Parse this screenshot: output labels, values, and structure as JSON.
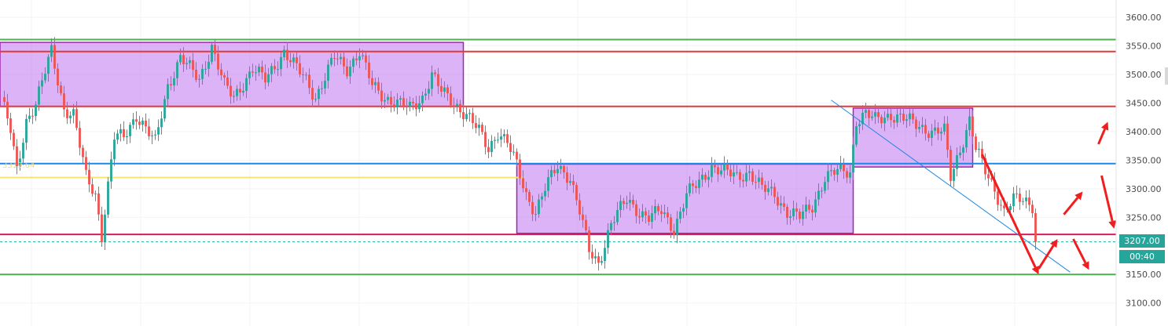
{
  "chart_data": {
    "type": "candlestick",
    "y_axis": {
      "ticks": [
        "3600.00",
        "3550.00",
        "3500.00",
        "3450.00",
        "3400.00",
        "3350.00",
        "3300.00",
        "3250.00",
        "3207.00",
        "3150.00",
        "3100.00"
      ],
      "range": [
        3080,
        3620
      ]
    },
    "current_price_label": "3207.00",
    "countdown_label": "00:40",
    "left_price_label": "3319.64",
    "horizontal_levels": [
      {
        "price": 3561,
        "color": "#4caf50"
      },
      {
        "price": 3540,
        "color": "#e53935"
      },
      {
        "price": 3444,
        "color": "#e53935"
      },
      {
        "price": 3344,
        "color": "#1e88e5"
      },
      {
        "price": 3319.64,
        "color": "#f7e46a"
      },
      {
        "price": 3220,
        "color": "#d81b60"
      },
      {
        "price": 3207,
        "color": "#26a69a",
        "style": "dashed"
      },
      {
        "price": 3150,
        "color": "#4caf50"
      }
    ],
    "ranges": [
      {
        "bar_from": 0,
        "bar_to": 147,
        "low": 3444,
        "high": 3556
      },
      {
        "bar_from": 164,
        "bar_to": 271,
        "low": 3222,
        "high": 3343
      },
      {
        "bar_from": 271,
        "bar_to": 309,
        "low": 3338,
        "high": 3441
      }
    ],
    "trendline": {
      "from": [
        264,
        3455
      ],
      "to": [
        340,
        3154
      ]
    },
    "projection_arrows": [
      {
        "from": [
          312,
          3360
        ],
        "to": [
          330,
          3150
        ]
      },
      {
        "from": [
          330,
          3160
        ],
        "to": [
          336,
          3212
        ]
      },
      {
        "from": [
          338,
          3255
        ],
        "to": [
          344,
          3295
        ]
      },
      {
        "from": [
          341,
          3212
        ],
        "to": [
          346,
          3158
        ]
      },
      {
        "from": [
          349,
          3378
        ],
        "to": [
          352,
          3417
        ]
      },
      {
        "from": [
          350,
          3323
        ],
        "to": [
          354,
          3230
        ]
      }
    ],
    "series": [
      {
        "name": "",
        "anchors": [
          [
            0,
            3460
          ],
          [
            3,
            3400
          ],
          [
            5,
            3330
          ],
          [
            8,
            3420
          ],
          [
            11,
            3450
          ],
          [
            16,
            3540
          ],
          [
            20,
            3440
          ],
          [
            23,
            3430
          ],
          [
            27,
            3320
          ],
          [
            30,
            3290
          ],
          [
            32,
            3220
          ],
          [
            36,
            3390
          ],
          [
            39,
            3390
          ],
          [
            43,
            3430
          ],
          [
            49,
            3380
          ],
          [
            53,
            3480
          ],
          [
            57,
            3530
          ],
          [
            63,
            3490
          ],
          [
            67,
            3550
          ],
          [
            71,
            3480
          ],
          [
            74,
            3460
          ],
          [
            80,
            3510
          ],
          [
            84,
            3490
          ],
          [
            90,
            3540
          ],
          [
            94,
            3510
          ],
          [
            97,
            3490
          ],
          [
            100,
            3460
          ],
          [
            106,
            3530
          ],
          [
            110,
            3510
          ],
          [
            114,
            3540
          ],
          [
            118,
            3480
          ],
          [
            122,
            3460
          ],
          [
            126,
            3450
          ],
          [
            130,
            3440
          ],
          [
            134,
            3460
          ],
          [
            137,
            3500
          ],
          [
            140,
            3470
          ],
          [
            144,
            3450
          ],
          [
            148,
            3430
          ],
          [
            152,
            3400
          ],
          [
            155,
            3370
          ],
          [
            158,
            3400
          ],
          [
            161,
            3380
          ],
          [
            164,
            3340
          ],
          [
            167,
            3290
          ],
          [
            170,
            3260
          ],
          [
            173,
            3300
          ],
          [
            177,
            3340
          ],
          [
            181,
            3320
          ],
          [
            184,
            3260
          ],
          [
            187,
            3190
          ],
          [
            190,
            3170
          ],
          [
            194,
            3240
          ],
          [
            199,
            3280
          ],
          [
            203,
            3260
          ],
          [
            206,
            3250
          ],
          [
            210,
            3260
          ],
          [
            214,
            3230
          ],
          [
            218,
            3290
          ],
          [
            222,
            3310
          ],
          [
            226,
            3340
          ],
          [
            230,
            3330
          ],
          [
            234,
            3320
          ],
          [
            238,
            3330
          ],
          [
            242,
            3300
          ],
          [
            246,
            3290
          ],
          [
            250,
            3260
          ],
          [
            254,
            3250
          ],
          [
            258,
            3270
          ],
          [
            262,
            3320
          ],
          [
            266,
            3330
          ],
          [
            270,
            3330
          ],
          [
            272,
            3420
          ],
          [
            275,
            3430
          ],
          [
            278,
            3420
          ],
          [
            283,
            3430
          ],
          [
            288,
            3420
          ],
          [
            292,
            3410
          ],
          [
            296,
            3400
          ],
          [
            300,
            3400
          ],
          [
            302,
            3320
          ],
          [
            305,
            3370
          ],
          [
            308,
            3420
          ],
          [
            310,
            3370
          ],
          [
            313,
            3330
          ],
          [
            316,
            3300
          ],
          [
            319,
            3260
          ],
          [
            322,
            3280
          ],
          [
            325,
            3280
          ],
          [
            328,
            3272
          ],
          [
            329,
            3207
          ]
        ]
      }
    ]
  }
}
